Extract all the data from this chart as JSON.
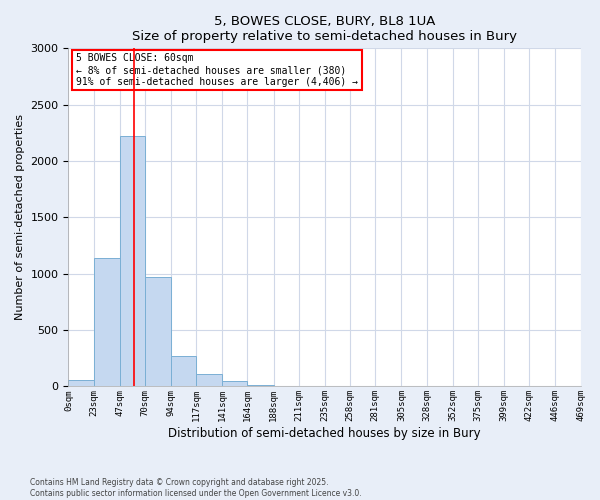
{
  "title": "5, BOWES CLOSE, BURY, BL8 1UA",
  "subtitle": "Size of property relative to semi-detached houses in Bury",
  "xlabel": "Distribution of semi-detached houses by size in Bury",
  "ylabel": "Number of semi-detached properties",
  "bin_labels": [
    "0sqm",
    "23sqm",
    "47sqm",
    "70sqm",
    "94sqm",
    "117sqm",
    "141sqm",
    "164sqm",
    "188sqm",
    "211sqm",
    "235sqm",
    "258sqm",
    "281sqm",
    "305sqm",
    "328sqm",
    "352sqm",
    "375sqm",
    "399sqm",
    "422sqm",
    "446sqm",
    "469sqm"
  ],
  "bin_edges": [
    0,
    23,
    47,
    70,
    94,
    117,
    141,
    164,
    188,
    211,
    235,
    258,
    281,
    305,
    328,
    352,
    375,
    399,
    422,
    446,
    469
  ],
  "bar_values": [
    60,
    1140,
    2220,
    970,
    270,
    110,
    50,
    10,
    5,
    2,
    0,
    0,
    0,
    0,
    0,
    0,
    0,
    0,
    0,
    0
  ],
  "bar_color": "#c5d8f0",
  "bar_edge_color": "#7aafd4",
  "property_line_x": 60,
  "annotation_title": "5 BOWES CLOSE: 60sqm",
  "annotation_line1": "← 8% of semi-detached houses are smaller (380)",
  "annotation_line2": "91% of semi-detached houses are larger (4,406) →",
  "ylim": [
    0,
    3000
  ],
  "yticks": [
    0,
    500,
    1000,
    1500,
    2000,
    2500,
    3000
  ],
  "footer_line1": "Contains HM Land Registry data © Crown copyright and database right 2025.",
  "footer_line2": "Contains public sector information licensed under the Open Government Licence v3.0.",
  "background_color": "#e8eef8",
  "plot_bg_color": "#ffffff",
  "grid_color": "#d0d8e8"
}
